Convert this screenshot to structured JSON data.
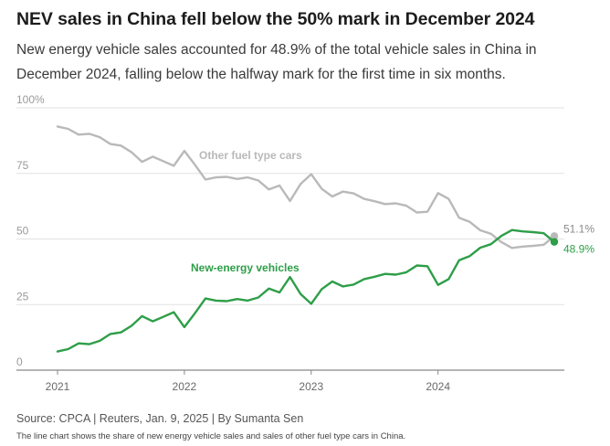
{
  "header": {
    "title": "NEV sales in China fell below the 50% mark in December 2024",
    "subtitle": "New energy vehicle sales accounted for 48.9% of the total vehicle sales in China in December 2024, falling below the halfway mark for the first time in six months."
  },
  "footer": {
    "source": "Source: CPCA | Reuters, Jan. 9, 2025 | By Sumanta Sen",
    "caption": "The line chart shows the share of new energy vehicle sales and sales of other fuel type cars in China."
  },
  "colors": {
    "nev": "#2e9e48",
    "other": "#b9b9b9",
    "grid": "#e2e2e2",
    "axis": "#888888"
  },
  "chart_data": {
    "type": "line",
    "title": "NEV sales in China fell below the 50% mark in December 2024",
    "xlabel": "",
    "ylabel": "",
    "ylim": [
      0,
      100
    ],
    "xlim": [
      0,
      47
    ],
    "y_ticks": [
      {
        "value": 0,
        "label": "0"
      },
      {
        "value": 25,
        "label": "25"
      },
      {
        "value": 50,
        "label": "50"
      },
      {
        "value": 75,
        "label": "75"
      },
      {
        "value": 100,
        "label": "100%"
      }
    ],
    "x_ticks": [
      {
        "index": 0,
        "label": "2021"
      },
      {
        "index": 12,
        "label": "2022"
      },
      {
        "index": 24,
        "label": "2023"
      },
      {
        "index": 36,
        "label": "2024"
      }
    ],
    "series": [
      {
        "name": "Other fuel type cars",
        "color": "#b9b9b9",
        "values": [
          92.9,
          92.0,
          89.8,
          90.1,
          88.8,
          86.2,
          85.6,
          83.1,
          79.4,
          81.4,
          79.7,
          77.9,
          83.6,
          78.3,
          72.7,
          73.5,
          73.7,
          72.9,
          73.5,
          72.3,
          68.9,
          70.4,
          64.5,
          71.0,
          74.7,
          69.1,
          66.2,
          68.1,
          67.4,
          65.3,
          64.4,
          63.3,
          63.6,
          62.7,
          60.1,
          60.4,
          67.5,
          65.3,
          58.1,
          56.5,
          53.3,
          52.0,
          48.8,
          46.6,
          47.1,
          47.4,
          47.8,
          51.1
        ]
      },
      {
        "name": "New-energy vehicles",
        "color": "#2e9e48",
        "values": [
          7.1,
          8.0,
          10.2,
          9.9,
          11.2,
          13.8,
          14.4,
          16.9,
          20.6,
          18.6,
          20.3,
          22.1,
          16.4,
          21.7,
          27.3,
          26.5,
          26.3,
          27.1,
          26.5,
          27.7,
          31.1,
          29.6,
          35.5,
          29.0,
          25.3,
          30.9,
          33.8,
          31.9,
          32.6,
          34.7,
          35.6,
          36.7,
          36.4,
          37.3,
          39.9,
          39.6,
          32.5,
          34.7,
          41.9,
          43.5,
          46.7,
          48.0,
          51.2,
          53.4,
          52.9,
          52.6,
          52.2,
          48.9
        ]
      }
    ],
    "series_labels": [
      {
        "series": 0,
        "text": "Other fuel type cars"
      },
      {
        "series": 1,
        "text": "New-energy vehicles"
      }
    ],
    "end_labels": [
      {
        "series": 0,
        "text": "51.1%"
      },
      {
        "series": 1,
        "text": "48.9%"
      }
    ]
  }
}
